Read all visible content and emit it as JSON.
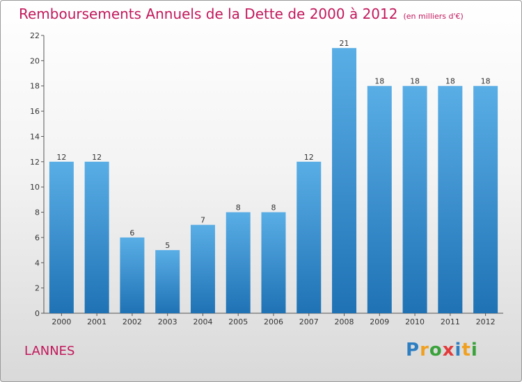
{
  "header": {
    "title": "Remboursements Annuels de la Dette de 2000 à 2012",
    "unit": "(en milliers d'€)"
  },
  "footer": {
    "commune": "LANNES",
    "logo": [
      "P",
      "r",
      "o",
      "x",
      "i",
      "t",
      "i"
    ]
  },
  "colors": {
    "title": "#c2185b",
    "bar_top": "#5aaee6",
    "bar_bottom": "#1f72b4"
  },
  "chart_data": {
    "type": "bar",
    "title": "Remboursements Annuels de la Dette de 2000 à 2012",
    "xlabel": "",
    "ylabel": "",
    "categories": [
      "2000",
      "2001",
      "2002",
      "2003",
      "2004",
      "2005",
      "2006",
      "2007",
      "2008",
      "2009",
      "2010",
      "2011",
      "2012"
    ],
    "values": [
      12,
      12,
      6,
      5,
      7,
      8,
      8,
      12,
      21,
      18,
      18,
      18,
      18
    ],
    "ylim": [
      0,
      22
    ],
    "yticks": [
      0,
      2,
      4,
      6,
      8,
      10,
      12,
      14,
      16,
      18,
      20,
      22
    ],
    "grid": false,
    "legend": "none"
  }
}
